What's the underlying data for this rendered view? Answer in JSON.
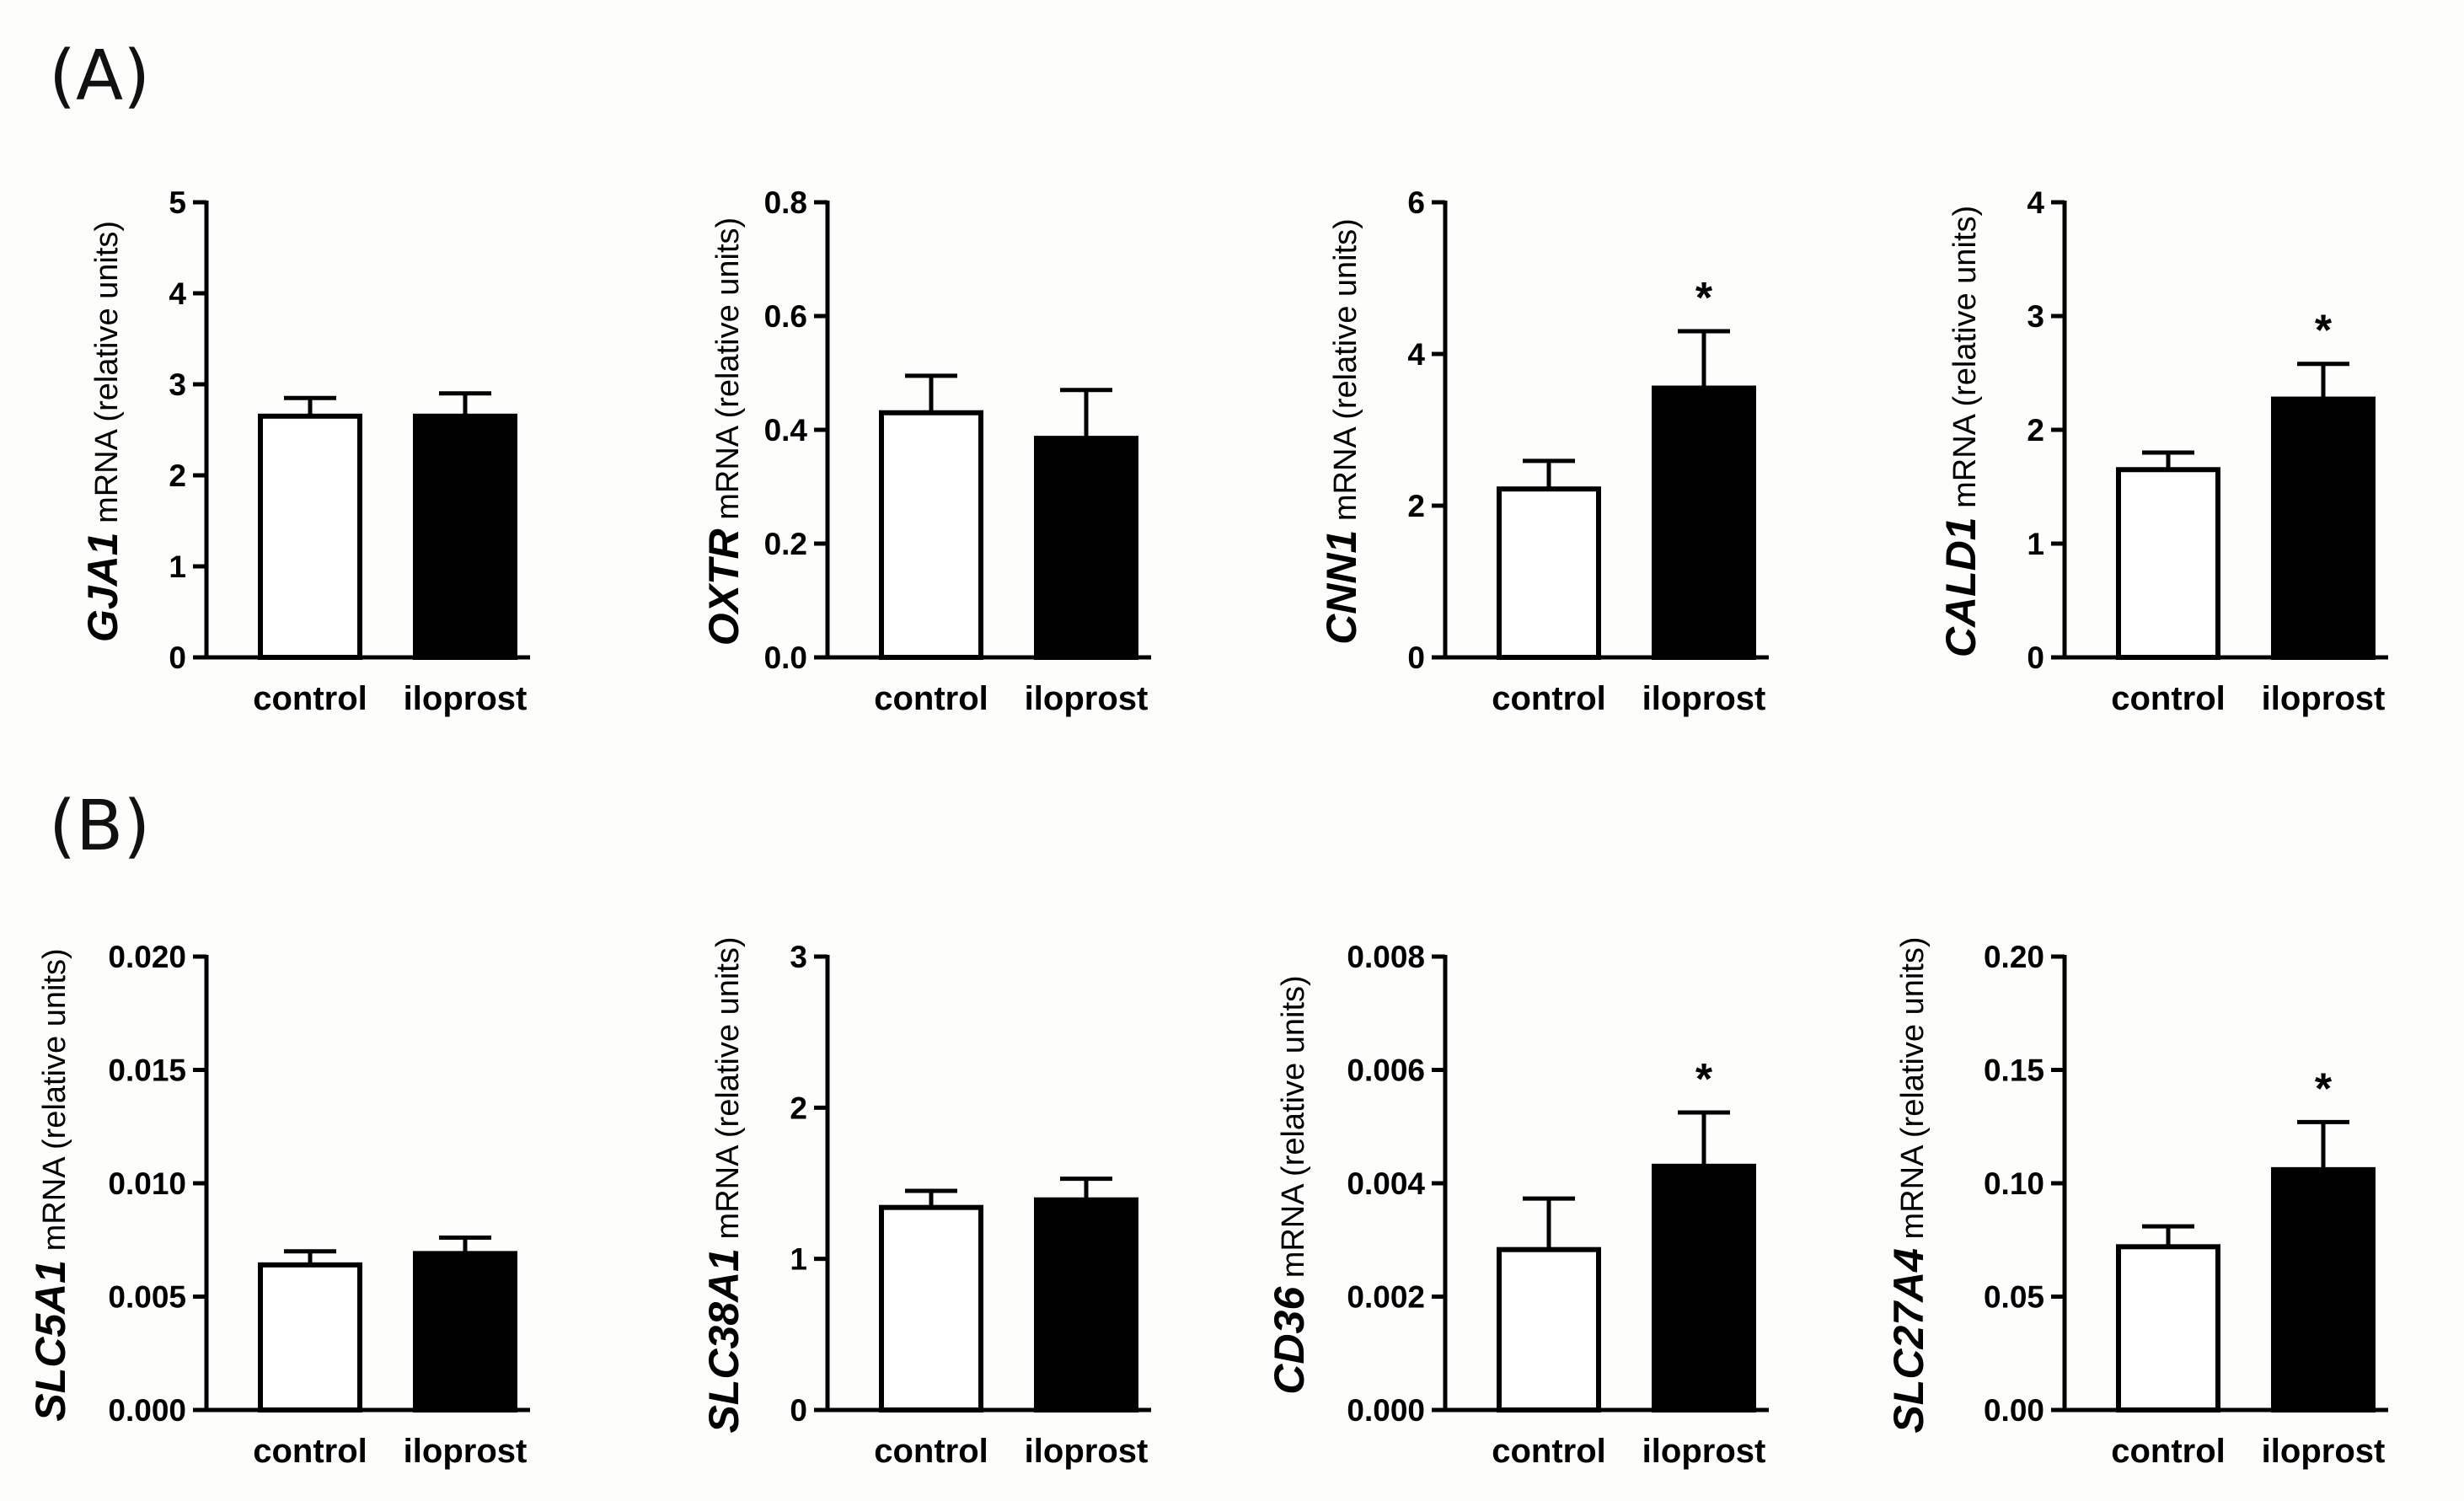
{
  "panels": [
    {
      "label": "(A)"
    },
    {
      "label": "(B)"
    }
  ],
  "chart_data": [
    {
      "type": "bar",
      "panel": "(A)",
      "gene": "GJA1",
      "ylabel_suffix": "mRNA (relative units)",
      "categories": [
        "control",
        "iloprost"
      ],
      "values": [
        2.65,
        2.65
      ],
      "errors": [
        0.2,
        0.25
      ],
      "significant": [
        false,
        false
      ],
      "significance_marker": "*",
      "ylim": [
        0,
        5
      ],
      "ticks": [
        0,
        1,
        2,
        3,
        4,
        5
      ],
      "tick_labels": [
        "0",
        "1",
        "2",
        "3",
        "4",
        "5"
      ],
      "bar_colors": [
        "#ffffff",
        "#000000"
      ]
    },
    {
      "type": "bar",
      "panel": "(A)",
      "gene": "OXTR",
      "ylabel_suffix": "mRNA (relative units)",
      "categories": [
        "control",
        "iloprost"
      ],
      "values": [
        0.43,
        0.385
      ],
      "errors": [
        0.065,
        0.085
      ],
      "significant": [
        false,
        false
      ],
      "significance_marker": "*",
      "ylim": [
        0,
        0.8
      ],
      "ticks": [
        0,
        0.2,
        0.4,
        0.6,
        0.8
      ],
      "tick_labels": [
        "0.0",
        "0.2",
        "0.4",
        "0.6",
        "0.8"
      ],
      "bar_colors": [
        "#ffffff",
        "#000000"
      ]
    },
    {
      "type": "bar",
      "panel": "(A)",
      "gene": "CNN1",
      "ylabel_suffix": "mRNA (relative units)",
      "categories": [
        "control",
        "iloprost"
      ],
      "values": [
        2.22,
        3.55
      ],
      "errors": [
        0.37,
        0.75
      ],
      "significant": [
        false,
        true
      ],
      "significance_marker": "*",
      "ylim": [
        0,
        6
      ],
      "ticks": [
        0,
        2,
        4,
        6
      ],
      "tick_labels": [
        "0",
        "2",
        "4",
        "6"
      ],
      "bar_colors": [
        "#ffffff",
        "#000000"
      ]
    },
    {
      "type": "bar",
      "panel": "(A)",
      "gene": "CALD1",
      "ylabel_suffix": "mRNA (relative units)",
      "categories": [
        "control",
        "iloprost"
      ],
      "values": [
        1.65,
        2.27
      ],
      "errors": [
        0.15,
        0.31
      ],
      "significant": [
        false,
        true
      ],
      "significance_marker": "*",
      "ylim": [
        0,
        4
      ],
      "ticks": [
        0,
        1,
        2,
        3,
        4
      ],
      "tick_labels": [
        "0",
        "1",
        "2",
        "3",
        "4"
      ],
      "bar_colors": [
        "#ffffff",
        "#000000"
      ]
    },
    {
      "type": "bar",
      "panel": "(B)",
      "gene": "SLC5A1",
      "ylabel_suffix": "mRNA (relative units)",
      "categories": [
        "control",
        "iloprost"
      ],
      "values": [
        0.0064,
        0.0069
      ],
      "errors": [
        0.0006,
        0.0007
      ],
      "significant": [
        false,
        false
      ],
      "significance_marker": "*",
      "ylim": [
        0,
        0.02
      ],
      "ticks": [
        0,
        0.005,
        0.01,
        0.015,
        0.02
      ],
      "tick_labels": [
        "0.000",
        "0.005",
        "0.010",
        "0.015",
        "0.020"
      ],
      "bar_colors": [
        "#ffffff",
        "#000000"
      ]
    },
    {
      "type": "bar",
      "panel": "(B)",
      "gene": "SLC38A1",
      "ylabel_suffix": "mRNA (relative units)",
      "categories": [
        "control",
        "iloprost"
      ],
      "values": [
        1.34,
        1.39
      ],
      "errors": [
        0.11,
        0.14
      ],
      "significant": [
        false,
        false
      ],
      "significance_marker": "*",
      "ylim": [
        0,
        3
      ],
      "ticks": [
        0,
        1,
        2,
        3
      ],
      "tick_labels": [
        "0",
        "1",
        "2",
        "3"
      ],
      "bar_colors": [
        "#ffffff",
        "#000000"
      ]
    },
    {
      "type": "bar",
      "panel": "(B)",
      "gene": "CD36",
      "ylabel_suffix": "mRNA (relative units)",
      "categories": [
        "control",
        "iloprost"
      ],
      "values": [
        0.00283,
        0.0043
      ],
      "errors": [
        0.0009,
        0.00095
      ],
      "significant": [
        false,
        true
      ],
      "significance_marker": "*",
      "ylim": [
        0,
        0.008
      ],
      "ticks": [
        0,
        0.002,
        0.004,
        0.006,
        0.008
      ],
      "tick_labels": [
        "0.000",
        "0.002",
        "0.004",
        "0.006",
        "0.008"
      ],
      "bar_colors": [
        "#ffffff",
        "#000000"
      ]
    },
    {
      "type": "bar",
      "panel": "(B)",
      "gene": "SLC27A4",
      "ylabel_suffix": "mRNA (relative units)",
      "categories": [
        "control",
        "iloprost"
      ],
      "values": [
        0.072,
        0.106
      ],
      "errors": [
        0.009,
        0.021
      ],
      "significant": [
        false,
        true
      ],
      "significance_marker": "*",
      "ylim": [
        0,
        0.2
      ],
      "ticks": [
        0,
        0.05,
        0.1,
        0.15,
        0.2
      ],
      "tick_labels": [
        "0.00",
        "0.05",
        "0.10",
        "0.15",
        "0.20"
      ],
      "bar_colors": [
        "#ffffff",
        "#000000"
      ]
    }
  ]
}
